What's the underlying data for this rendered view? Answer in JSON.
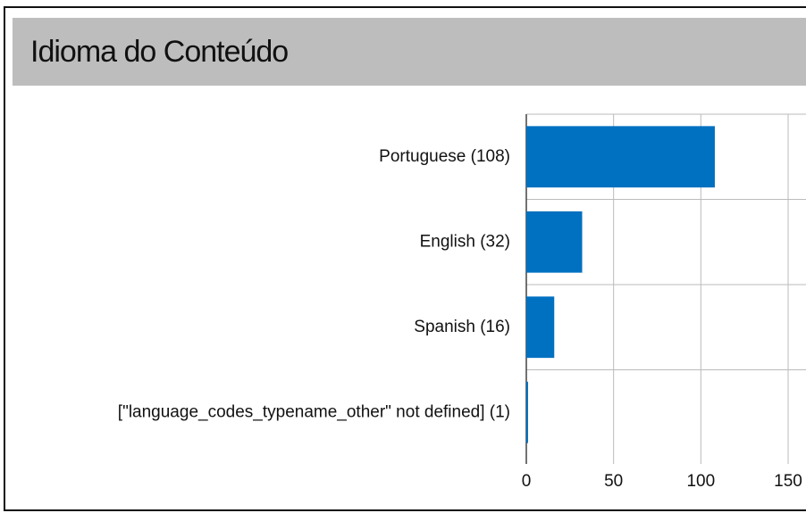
{
  "header": {
    "title": "Idioma do Conteúdo"
  },
  "chart_data": {
    "type": "barh",
    "categories": [
      "Portuguese (108)",
      "English (32)",
      "Spanish (16)",
      "[\"language_codes_typename_other\" not defined] (1)"
    ],
    "values": [
      108,
      32,
      16,
      1
    ],
    "color": "#0070c0",
    "xlim": [
      0,
      150
    ],
    "xticks": [
      0,
      50,
      100,
      150
    ],
    "grid": true
  }
}
